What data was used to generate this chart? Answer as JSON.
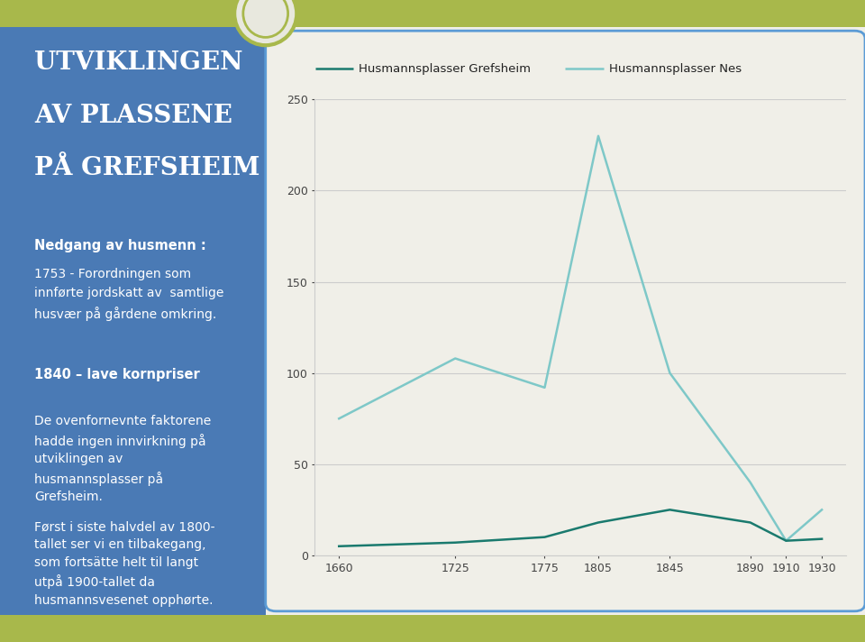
{
  "years": [
    1660,
    1725,
    1775,
    1805,
    1845,
    1890,
    1910,
    1930
  ],
  "grefsheim": [
    5,
    7,
    10,
    18,
    25,
    18,
    8,
    9
  ],
  "nes": [
    75,
    108,
    92,
    230,
    100,
    40,
    8,
    25
  ],
  "grefsheim_color": "#1a7a6e",
  "nes_color": "#7ec8c8",
  "legend_grefsheim": "Husmannsplasser Grefsheim",
  "legend_nes": "Husmannsplasser Nes",
  "ylim": [
    0,
    250
  ],
  "yticks": [
    0,
    50,
    100,
    150,
    200,
    250
  ],
  "background_left": "#4a7ab5",
  "background_right": "#f0efe8",
  "background_chart": "#f0efe8",
  "grid_color": "#cccccc",
  "border_color": "#5b9bd5",
  "outer_bg": "#a8b84b",
  "oval_bg": "#e8e8de",
  "oval_border": "#a8b84b",
  "title_line1": "UTVIKLINGEN",
  "title_line2": "AV PLASSENE",
  "title_line3": "PÅ GREFSHEIM",
  "text1_header": "Nedgang av husmenn :",
  "text1_body": "1753 - Forordningen som\ninnførte jordskatt av  samtlige\nhusvær på gårdene omkring.",
  "text2": "1840 – lave kornpriser",
  "text3": "De ovenfornevnte faktorene\nhadde ingen innvirkning på\nutviklingen av\nhusmannsplasser på\nGrefsheim.",
  "text4": "Først i siste halvdel av 1800-\ntallet ser vi en tilbakegang,\nsom fortsätte helt til langt\nutpå 1900-tallet da\nhusmannsvesenet opphørte."
}
